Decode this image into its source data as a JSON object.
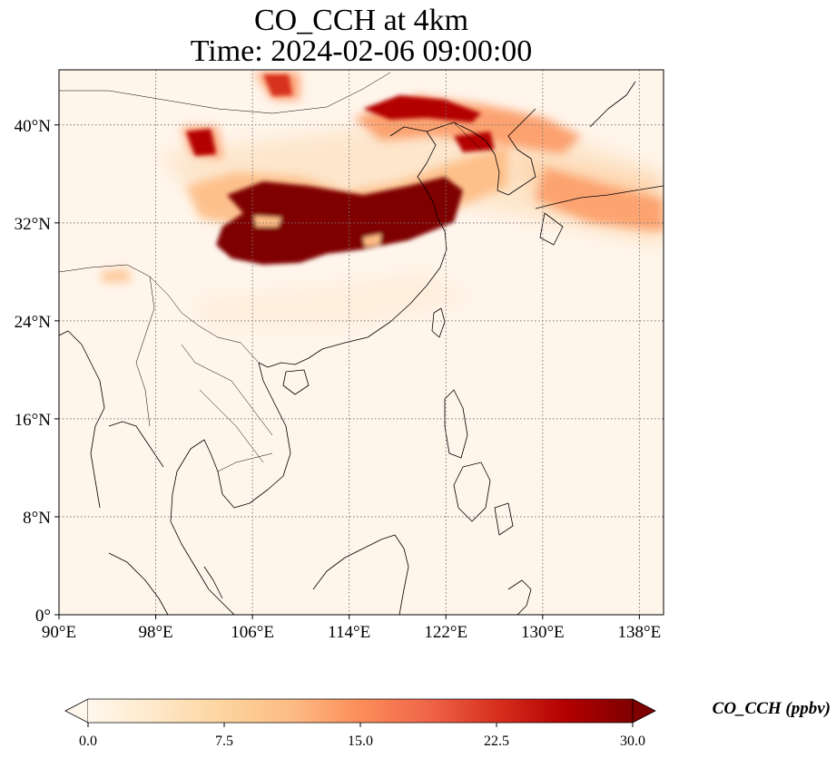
{
  "title": {
    "line1": "CO_CCH at 4km",
    "line2": "Time: 2024-02-06 09:00:00"
  },
  "map": {
    "extent": {
      "lon": [
        90,
        140
      ],
      "lat": [
        0,
        44.5
      ]
    },
    "lon_ticks": [
      {
        "value": 90,
        "label": "90°E"
      },
      {
        "value": 98,
        "label": "98°E"
      },
      {
        "value": 106,
        "label": "106°E"
      },
      {
        "value": 114,
        "label": "114°E"
      },
      {
        "value": 122,
        "label": "122°E"
      },
      {
        "value": 130,
        "label": "130°E"
      },
      {
        "value": 138,
        "label": "138°E"
      }
    ],
    "lat_ticks": [
      {
        "value": 0,
        "label": "0°"
      },
      {
        "value": 8,
        "label": "8°N"
      },
      {
        "value": 16,
        "label": "16°N"
      },
      {
        "value": 24,
        "label": "24°N"
      },
      {
        "value": 32,
        "label": "32°N"
      },
      {
        "value": 40,
        "label": "40°N"
      }
    ],
    "gridlines": true,
    "background_color": "#fff5eb"
  },
  "colorbar": {
    "label": "CO_CCH (ppbv)",
    "min": 0,
    "max": 30,
    "ticks": [
      {
        "value": 0,
        "label": "0.0"
      },
      {
        "value": 7.5,
        "label": "7.5"
      },
      {
        "value": 15,
        "label": "15.0"
      },
      {
        "value": 22.5,
        "label": "22.5"
      },
      {
        "value": 30,
        "label": "30.0"
      }
    ],
    "extend": "both",
    "colormap": "OrRd",
    "colors": [
      "#fff7ec",
      "#fee8c8",
      "#fdd49e",
      "#fdbb84",
      "#fc8d59",
      "#ef6548",
      "#d7301f",
      "#b30000",
      "#7f0000"
    ]
  }
}
